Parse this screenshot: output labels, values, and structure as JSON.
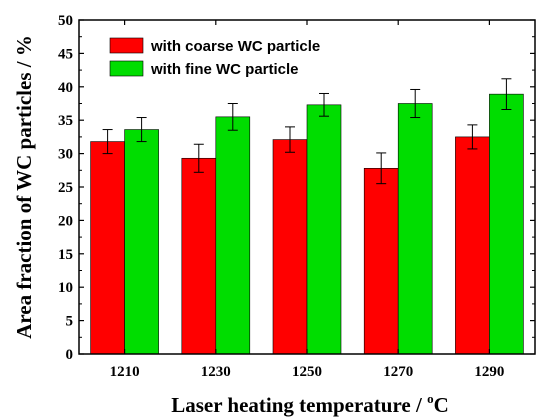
{
  "chart_data": {
    "type": "bar",
    "categories": [
      "1210",
      "1230",
      "1250",
      "1270",
      "1290"
    ],
    "series": [
      {
        "name": "with coarse WC particle",
        "color": "#ff0000",
        "values": [
          31.8,
          29.3,
          32.1,
          27.8,
          32.5
        ],
        "errors": [
          1.8,
          2.1,
          1.9,
          2.3,
          1.8
        ]
      },
      {
        "name": "with fine WC particle",
        "color": "#00dd00",
        "values": [
          33.6,
          35.5,
          37.3,
          37.5,
          38.9
        ],
        "errors": [
          1.8,
          2.0,
          1.7,
          2.1,
          2.3
        ]
      }
    ],
    "xlabel_main": "Laser heating temperature / ",
    "xlabel_sup": "o",
    "xlabel_unit": "C",
    "ylabel": "Area fraction of WC particles / %",
    "ylim": [
      0,
      50
    ],
    "yticks": [
      "0",
      "5",
      "10",
      "15",
      "20",
      "25",
      "30",
      "35",
      "40",
      "45",
      "50"
    ],
    "legend_position": "top-left",
    "grid": false
  }
}
